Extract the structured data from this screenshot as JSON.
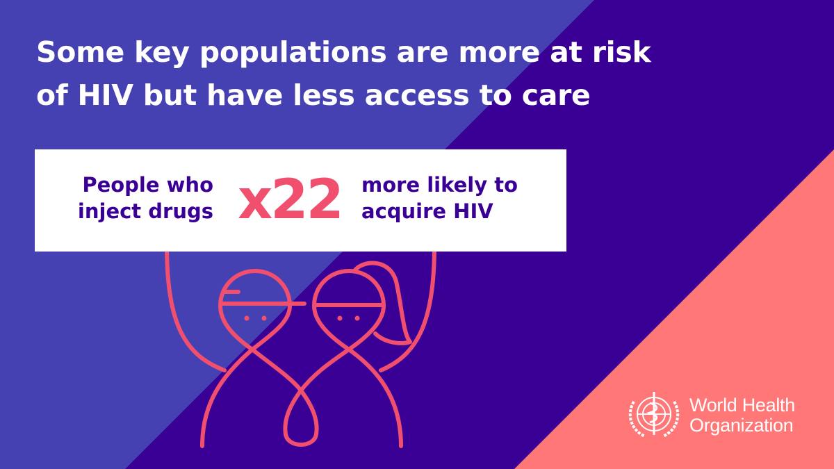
{
  "colors": {
    "background_light": "#4641b2",
    "background_dark": "#3a0096",
    "accent_pink": "#ff7777",
    "figure_red": "#f0506e",
    "text_purple": "#3a0096",
    "white": "#ffffff"
  },
  "headline": {
    "line1": "Some key populations are more at risk",
    "line2": "of HIV but have less access to care"
  },
  "stat_card": {
    "population_line1": "People who",
    "population_line2": "inject drugs",
    "multiplier": "x22",
    "outcome_line1": "more likely to",
    "outcome_line2": "acquire HIV"
  },
  "illustration": {
    "icon": "two-people-holding-sign-icon"
  },
  "logo": {
    "icon": "who-emblem-icon",
    "line1": "World Health",
    "line2": "Organization"
  }
}
